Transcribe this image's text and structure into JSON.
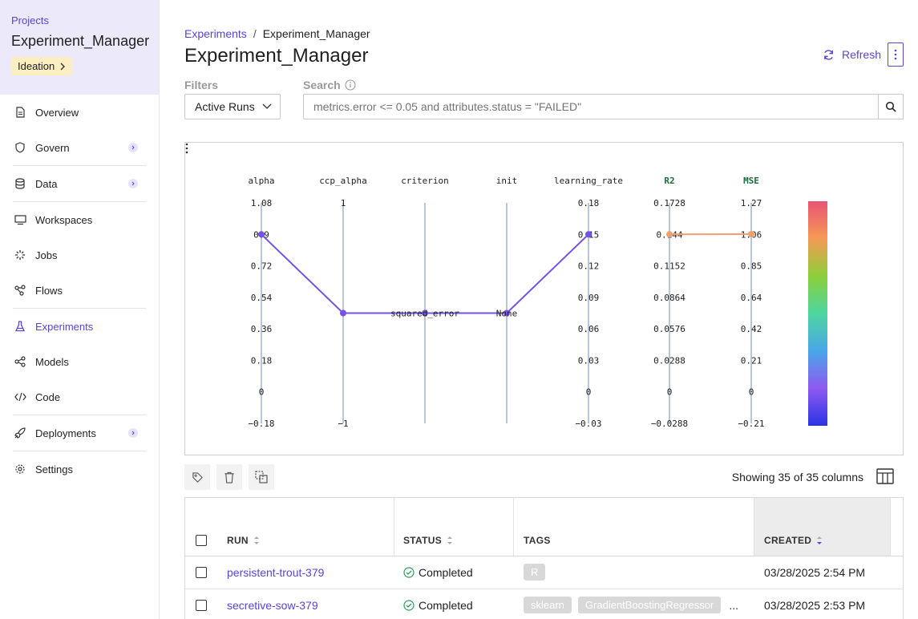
{
  "sidebar": {
    "projects_label": "Projects",
    "project_name": "Experiment_Manager",
    "stage": "Ideation",
    "items": [
      {
        "label": "Overview"
      },
      {
        "label": "Govern"
      },
      {
        "label": "Data"
      },
      {
        "label": "Workspaces"
      },
      {
        "label": "Jobs"
      },
      {
        "label": "Flows"
      },
      {
        "label": "Experiments"
      },
      {
        "label": "Models"
      },
      {
        "label": "Code"
      },
      {
        "label": "Deployments"
      },
      {
        "label": "Settings"
      }
    ]
  },
  "header": {
    "breadcrumb_root": "Experiments",
    "breadcrumb_sep": "/",
    "breadcrumb_current": "Experiment_Manager",
    "title": "Experiment_Manager",
    "refresh_label": "Refresh"
  },
  "filters": {
    "filters_label": "Filters",
    "select_value": "Active Runs",
    "search_label": "Search",
    "search_placeholder": "metrics.error <= 0.05 and attributes.status = \"FAILED\""
  },
  "chart_data": {
    "type": "parallel_coordinates",
    "axes": [
      {
        "name": "alpha",
        "ticks": [
          "1.08",
          "0.9",
          "0.72",
          "0.54",
          "0.36",
          "0.18",
          "0",
          "−0.18"
        ]
      },
      {
        "name": "ccp_alpha",
        "ticks": [
          "1",
          "−1"
        ]
      },
      {
        "name": "criterion",
        "ticks": [],
        "category": "squared_error"
      },
      {
        "name": "init",
        "ticks": [],
        "category": "None"
      },
      {
        "name": "learning_rate",
        "ticks": [
          "0.18",
          "0.15",
          "0.12",
          "0.09",
          "0.06",
          "0.03",
          "0",
          "−0.03"
        ]
      },
      {
        "name": "R2",
        "ticks": [
          "0.1728",
          "0.144",
          "0.1152",
          "0.0864",
          "0.0576",
          "0.0288",
          "0",
          "−0.0288"
        ],
        "highlight": true
      },
      {
        "name": "MSE",
        "ticks": [
          "1.27",
          "1.06",
          "0.85",
          "0.64",
          "0.42",
          "0.21",
          "0",
          "−0.21"
        ],
        "highlight": true
      }
    ],
    "lines": [
      {
        "values": {
          "alpha": 0.9,
          "ccp_alpha": 0,
          "criterion": "squared_error",
          "init": "None",
          "learning_rate": 0.15,
          "R2": 0.144,
          "MSE": 1.06
        }
      }
    ],
    "colorscale": [
      "#e85474",
      "#f59a55",
      "#8ccf3a",
      "#4dd6a0",
      "#4aa6e8",
      "#8e5af0",
      "#2a33e6"
    ],
    "line_color": "#7452e6",
    "metric_line_color": "#f0a070",
    "axis_label_color": "#1b6b3b"
  },
  "table": {
    "showing_text": "Showing 35 of 35 columns",
    "columns": [
      "RUN",
      "STATUS",
      "TAGS",
      "CREATED"
    ],
    "rows": [
      {
        "run": "persistent-trout-379",
        "status": "Completed",
        "tags": [
          "R"
        ],
        "created": "03/28/2025 2:54 PM"
      },
      {
        "run": "secretive-sow-379",
        "status": "Completed",
        "tags": [
          "sklearn",
          "GradientBoostingRegressor"
        ],
        "more": "...",
        "created": "03/28/2025 2:53 PM"
      }
    ]
  }
}
